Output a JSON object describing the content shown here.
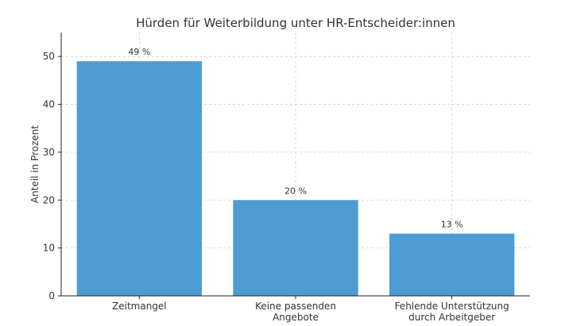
{
  "chart_data": {
    "type": "bar",
    "title": "Hürden für Weiterbildung unter HR-Entscheider:innen",
    "ylabel": "Anteil in Prozent",
    "xlabel": "",
    "categories": [
      [
        "Zeitmangel"
      ],
      [
        "Keine passenden",
        "Angebote"
      ],
      [
        "Fehlende Unterstützung",
        "durch Arbeitgeber"
      ]
    ],
    "values": [
      49,
      20,
      13
    ],
    "data_labels": [
      "49 %",
      "20 %",
      "13 %"
    ],
    "ylim": [
      0,
      55
    ],
    "yticks": [
      0,
      10,
      20,
      30,
      40,
      50
    ],
    "grid": true,
    "bar_color": "#4c9cd3"
  }
}
